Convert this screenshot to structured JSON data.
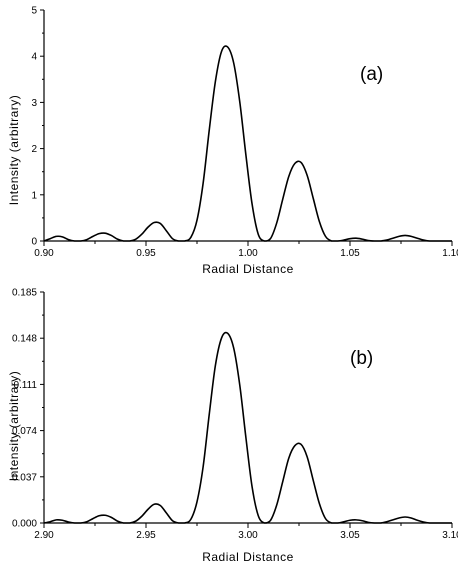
{
  "chart_data": [
    {
      "type": "line",
      "panel_label": "(a)",
      "xlabel": "Radial Distance",
      "ylabel": "Intensity (arbitrary)",
      "xlim": [
        0.9,
        1.1
      ],
      "ylim": [
        0,
        5
      ],
      "x_ticks": [
        "0.90",
        "0.95",
        "1.00",
        "1.05",
        "1.10"
      ],
      "y_ticks": [
        "0",
        "1",
        "2",
        "3",
        "4",
        "5"
      ],
      "x_tick_values": [
        0.9,
        0.95,
        1.0,
        1.05,
        1.1
      ],
      "y_tick_values": [
        0,
        1,
        2,
        3,
        4,
        5
      ],
      "grid": false,
      "series": [
        {
          "x": [
            0.9,
            0.903,
            0.906,
            0.909,
            0.912,
            0.915,
            0.918,
            0.921,
            0.924,
            0.927,
            0.93,
            0.933,
            0.936,
            0.939,
            0.942,
            0.945,
            0.948,
            0.951,
            0.954,
            0.957,
            0.96,
            0.963,
            0.966,
            0.969,
            0.972,
            0.975,
            0.978,
            0.981,
            0.984,
            0.987,
            0.99,
            0.993,
            0.996,
            0.999,
            1.002,
            1.005,
            1.008,
            1.011,
            1.014,
            1.017,
            1.02,
            1.023,
            1.026,
            1.029,
            1.032,
            1.035,
            1.038,
            1.041,
            1.044,
            1.047,
            1.05,
            1.053,
            1.056,
            1.059,
            1.062,
            1.065,
            1.068,
            1.071,
            1.074,
            1.077,
            1.08,
            1.083,
            1.086,
            1.089,
            1.092,
            1.095,
            1.098,
            1.1
          ],
          "y": [
            0.0,
            0.05,
            0.1,
            0.09,
            0.03,
            0.0,
            0.0,
            0.03,
            0.1,
            0.16,
            0.17,
            0.12,
            0.04,
            0.0,
            0.0,
            0.04,
            0.15,
            0.3,
            0.4,
            0.38,
            0.22,
            0.05,
            0.0,
            0.0,
            0.08,
            0.45,
            1.25,
            2.4,
            3.45,
            4.1,
            4.2,
            3.85,
            3.0,
            1.85,
            0.8,
            0.15,
            0.0,
            0.05,
            0.38,
            0.9,
            1.4,
            1.68,
            1.7,
            1.42,
            0.92,
            0.42,
            0.1,
            0.0,
            0.0,
            0.02,
            0.05,
            0.06,
            0.04,
            0.01,
            0.0,
            0.0,
            0.02,
            0.06,
            0.1,
            0.12,
            0.1,
            0.06,
            0.02,
            0.0,
            0.0,
            0.0,
            0.0,
            0.0
          ]
        }
      ]
    },
    {
      "type": "line",
      "panel_label": "(b)",
      "xlabel": "Radial Distance",
      "ylabel": "Intensity (arbitrary)",
      "xlim": [
        2.9,
        3.1
      ],
      "ylim": [
        0,
        0.185
      ],
      "x_ticks": [
        "2.90",
        "2.95",
        "3.00",
        "3.05",
        "3.10"
      ],
      "y_ticks": [
        "0.000",
        "0.037",
        "0.074",
        "0.111",
        "0.148",
        "0.185"
      ],
      "x_tick_values": [
        2.9,
        2.95,
        3.0,
        3.05,
        3.1
      ],
      "y_tick_values": [
        0,
        0.037,
        0.074,
        0.111,
        0.148,
        0.185
      ],
      "grid": false,
      "series": [
        {
          "x": [
            2.9,
            2.903,
            2.906,
            2.909,
            2.912,
            2.915,
            2.918,
            2.921,
            2.924,
            2.927,
            2.93,
            2.933,
            2.936,
            2.939,
            2.942,
            2.945,
            2.948,
            2.951,
            2.954,
            2.957,
            2.96,
            2.963,
            2.966,
            2.969,
            2.972,
            2.975,
            2.978,
            2.981,
            2.984,
            2.987,
            2.99,
            2.993,
            2.996,
            2.999,
            3.002,
            3.005,
            3.008,
            3.011,
            3.014,
            3.017,
            3.02,
            3.023,
            3.026,
            3.029,
            3.032,
            3.035,
            3.038,
            3.041,
            3.044,
            3.047,
            3.05,
            3.053,
            3.056,
            3.059,
            3.062,
            3.065,
            3.068,
            3.071,
            3.074,
            3.077,
            3.08,
            3.083,
            3.086,
            3.089,
            3.092,
            3.095,
            3.098,
            3.1
          ],
          "y": [
            0.0,
            0.001,
            0.0025,
            0.0022,
            0.0008,
            0.0,
            0.0,
            0.001,
            0.0035,
            0.0058,
            0.0062,
            0.0045,
            0.0015,
            0.0,
            0.0,
            0.0015,
            0.0055,
            0.011,
            0.015,
            0.014,
            0.008,
            0.0018,
            0.0,
            0.0,
            0.003,
            0.017,
            0.045,
            0.087,
            0.126,
            0.148,
            0.152,
            0.14,
            0.11,
            0.068,
            0.029,
            0.006,
            0.0,
            0.002,
            0.014,
            0.033,
            0.052,
            0.062,
            0.063,
            0.053,
            0.034,
            0.0155,
            0.0035,
            0.0,
            0.0,
            0.001,
            0.0022,
            0.0025,
            0.0018,
            0.0005,
            0.0,
            0.0,
            0.001,
            0.0025,
            0.004,
            0.0048,
            0.004,
            0.0022,
            0.0008,
            0.0,
            0.0,
            0.0,
            0.0,
            0.0
          ]
        }
      ]
    }
  ]
}
